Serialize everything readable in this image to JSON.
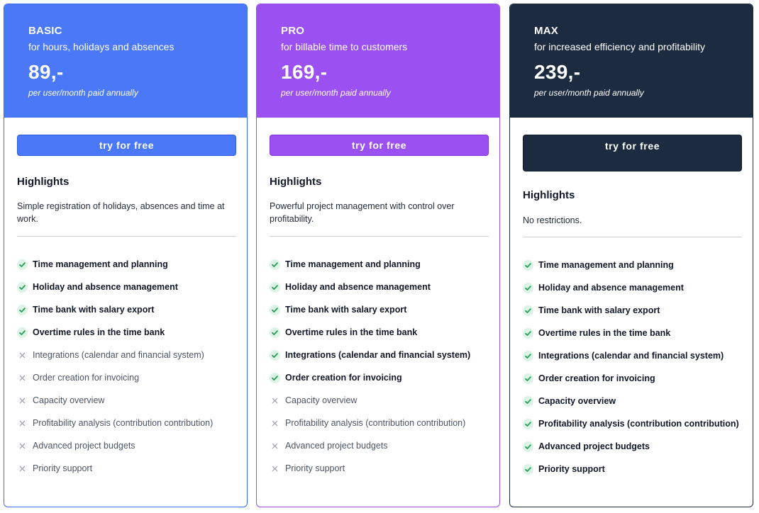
{
  "plans": [
    {
      "id": "basic",
      "name": "BASIC",
      "tagline": "for hours, holidays and absences",
      "price": "89,-",
      "billing": "per user/month paid annually",
      "cta": "try for free",
      "highlights_title": "Highlights",
      "highlights_text": "Simple registration of holidays, absences and time at work.",
      "accent_color": "#4a78f7",
      "features": [
        {
          "label": "Time management and planning",
          "included": true,
          "icon": "check-icon"
        },
        {
          "label": "Holiday and absence management",
          "included": true,
          "icon": "check-icon"
        },
        {
          "label": "Time bank with salary export",
          "included": true,
          "icon": "check-icon"
        },
        {
          "label": "Overtime rules in the time bank",
          "included": true,
          "icon": "check-icon"
        },
        {
          "label": "Integrations (calendar and financial system)",
          "included": false,
          "icon": "x-icon"
        },
        {
          "label": "Order creation for invoicing",
          "included": false,
          "icon": "x-icon"
        },
        {
          "label": "Capacity overview",
          "included": false,
          "icon": "x-icon"
        },
        {
          "label": "Profitability analysis (contribution contribution)",
          "included": false,
          "icon": "x-icon"
        },
        {
          "label": "Advanced project budgets",
          "included": false,
          "icon": "x-icon"
        },
        {
          "label": "Priority support",
          "included": false,
          "icon": "x-icon"
        }
      ]
    },
    {
      "id": "pro",
      "name": "PRO",
      "tagline": "for billable time to customers",
      "price": "169,-",
      "billing": "per user/month paid annually",
      "cta": "try for free",
      "highlights_title": "Highlights",
      "highlights_text": "Powerful project management with control over profitability.",
      "accent_color": "#9b51f1",
      "features": [
        {
          "label": "Time management and planning",
          "included": true,
          "icon": "check-icon"
        },
        {
          "label": "Holiday and absence management",
          "included": true,
          "icon": "check-icon"
        },
        {
          "label": "Time bank with salary export",
          "included": true,
          "icon": "check-icon"
        },
        {
          "label": "Overtime rules in the time bank",
          "included": true,
          "icon": "check-icon"
        },
        {
          "label": "Integrations (calendar and financial system)",
          "included": true,
          "icon": "check-icon"
        },
        {
          "label": "Order creation for invoicing",
          "included": true,
          "icon": "check-icon"
        },
        {
          "label": "Capacity overview",
          "included": false,
          "icon": "x-icon"
        },
        {
          "label": "Profitability analysis (contribution contribution)",
          "included": false,
          "icon": "x-icon"
        },
        {
          "label": "Advanced project budgets",
          "included": false,
          "icon": "x-icon"
        },
        {
          "label": "Priority support",
          "included": false,
          "icon": "x-icon"
        }
      ]
    },
    {
      "id": "max",
      "name": "MAX",
      "tagline": "for increased efficiency and profitability",
      "price": "239,-",
      "billing": "per user/month paid annually",
      "cta": "try for free",
      "highlights_title": "Highlights",
      "highlights_text": "No restrictions.",
      "accent_color": "#1c2b3f",
      "features": [
        {
          "label": "Time management and planning",
          "included": true,
          "icon": "check-icon"
        },
        {
          "label": "Holiday and absence management",
          "included": true,
          "icon": "check-icon"
        },
        {
          "label": "Time bank with salary export",
          "included": true,
          "icon": "check-icon"
        },
        {
          "label": "Overtime rules in the time bank",
          "included": true,
          "icon": "check-icon"
        },
        {
          "label": "Integrations (calendar and financial system)",
          "included": true,
          "icon": "check-icon"
        },
        {
          "label": "Order creation for invoicing",
          "included": true,
          "icon": "check-icon"
        },
        {
          "label": "Capacity overview",
          "included": true,
          "icon": "check-icon"
        },
        {
          "label": "Profitability analysis (contribution contribution)",
          "included": true,
          "icon": "check-icon"
        },
        {
          "label": "Advanced project budgets",
          "included": true,
          "icon": "check-icon"
        },
        {
          "label": "Priority support",
          "included": true,
          "icon": "check-icon"
        }
      ]
    }
  ],
  "colors": {
    "check_green": "#1f9d55",
    "check_bg": "#dcf3e6",
    "x_gray": "#9ca3af"
  }
}
